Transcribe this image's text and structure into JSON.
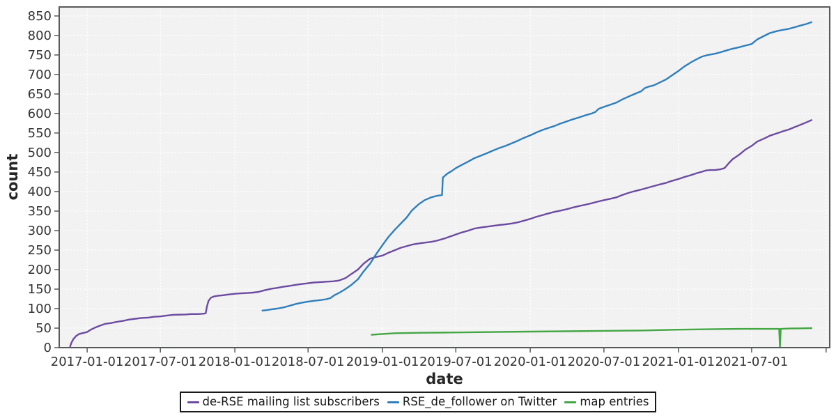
{
  "chart_data": {
    "type": "line",
    "title": "",
    "xlabel": "date",
    "ylabel": "count",
    "grid": true,
    "legend_position": "bottom",
    "x_domain": [
      "2016-10-24",
      "2022-01-10"
    ],
    "y_domain": [
      0,
      873
    ],
    "y_ticks": [
      0,
      50,
      100,
      150,
      200,
      250,
      300,
      350,
      400,
      450,
      500,
      550,
      600,
      650,
      700,
      750,
      800,
      850
    ],
    "x_ticks": [
      {
        "date": "2017-01-01",
        "label": "2017-01-01"
      },
      {
        "date": "2017-07-01",
        "label": "2017-07-01"
      },
      {
        "date": "2018-01-01",
        "label": "2018-01-01"
      },
      {
        "date": "2018-07-01",
        "label": "2018-07-01"
      },
      {
        "date": "2019-01-01",
        "label": "2019-01-01"
      },
      {
        "date": "2019-07-01",
        "label": "2019-07-01"
      },
      {
        "date": "2020-01-01",
        "label": "2020-01-01"
      },
      {
        "date": "2020-07-01",
        "label": "2020-07-01"
      },
      {
        "date": "2021-01-01",
        "label": "2021-01-01"
      },
      {
        "date": "2021-07-01",
        "label": "2021-07-01"
      },
      {
        "date": "2022-01-01",
        "label": ""
      }
    ],
    "colors": {
      "plot_background": "#f2f2f2",
      "gridline": "#ffffff",
      "axis_frame": "#58595b",
      "tick_text": "#333333",
      "axis_title_text": "#262626",
      "legend_border": "#1a1a1a",
      "legend_text": "#1a1a1a"
    },
    "series": [
      {
        "name": "de-RSE mailing list subscribers",
        "color": "#6b4ba1",
        "points": [
          [
            "2016-11-20",
            3
          ],
          [
            "2016-11-23",
            12
          ],
          [
            "2016-11-28",
            22
          ],
          [
            "2016-12-05",
            30
          ],
          [
            "2016-12-12",
            35
          ],
          [
            "2016-12-20",
            37
          ],
          [
            "2017-01-01",
            40
          ],
          [
            "2017-01-10",
            46
          ],
          [
            "2017-01-20",
            51
          ],
          [
            "2017-02-01",
            56
          ],
          [
            "2017-02-15",
            61
          ],
          [
            "2017-03-01",
            63
          ],
          [
            "2017-03-15",
            66
          ],
          [
            "2017-04-01",
            69
          ],
          [
            "2017-04-15",
            72
          ],
          [
            "2017-05-01",
            74
          ],
          [
            "2017-05-15",
            76
          ],
          [
            "2017-06-01",
            77
          ],
          [
            "2017-06-15",
            79
          ],
          [
            "2017-07-01",
            80
          ],
          [
            "2017-07-15",
            82
          ],
          [
            "2017-08-01",
            84
          ],
          [
            "2017-09-01",
            85
          ],
          [
            "2017-09-15",
            86
          ],
          [
            "2017-10-01",
            86
          ],
          [
            "2017-10-15",
            87
          ],
          [
            "2017-10-21",
            88
          ],
          [
            "2017-10-24",
            105
          ],
          [
            "2017-10-28",
            120
          ],
          [
            "2017-11-03",
            128
          ],
          [
            "2017-11-10",
            131
          ],
          [
            "2017-11-20",
            133
          ],
          [
            "2017-12-01",
            134
          ],
          [
            "2017-12-15",
            136
          ],
          [
            "2018-01-01",
            138
          ],
          [
            "2018-01-15",
            139
          ],
          [
            "2018-02-01",
            140
          ],
          [
            "2018-02-15",
            141
          ],
          [
            "2018-03-01",
            143
          ],
          [
            "2018-03-15",
            147
          ],
          [
            "2018-04-01",
            151
          ],
          [
            "2018-04-15",
            153
          ],
          [
            "2018-05-01",
            156
          ],
          [
            "2018-05-15",
            158
          ],
          [
            "2018-06-01",
            161
          ],
          [
            "2018-06-15",
            163
          ],
          [
            "2018-07-01",
            165
          ],
          [
            "2018-07-15",
            167
          ],
          [
            "2018-08-01",
            168
          ],
          [
            "2018-08-15",
            169
          ],
          [
            "2018-09-01",
            170
          ],
          [
            "2018-09-15",
            172
          ],
          [
            "2018-10-01",
            178
          ],
          [
            "2018-10-15",
            188
          ],
          [
            "2018-11-01",
            200
          ],
          [
            "2018-11-15",
            215
          ],
          [
            "2018-12-01",
            228
          ],
          [
            "2018-12-15",
            232
          ],
          [
            "2019-01-01",
            236
          ],
          [
            "2019-01-15",
            243
          ],
          [
            "2019-02-01",
            250
          ],
          [
            "2019-02-15",
            256
          ],
          [
            "2019-03-01",
            260
          ],
          [
            "2019-03-15",
            264
          ],
          [
            "2019-04-01",
            267
          ],
          [
            "2019-04-15",
            269
          ],
          [
            "2019-05-01",
            271
          ],
          [
            "2019-05-15",
            274
          ],
          [
            "2019-06-01",
            279
          ],
          [
            "2019-06-15",
            284
          ],
          [
            "2019-07-01",
            290
          ],
          [
            "2019-07-15",
            295
          ],
          [
            "2019-08-01",
            300
          ],
          [
            "2019-08-15",
            305
          ],
          [
            "2019-09-01",
            308
          ],
          [
            "2019-09-15",
            310
          ],
          [
            "2019-10-01",
            312
          ],
          [
            "2019-10-15",
            314
          ],
          [
            "2019-11-01",
            316
          ],
          [
            "2019-11-15",
            318
          ],
          [
            "2019-12-01",
            321
          ],
          [
            "2019-12-15",
            325
          ],
          [
            "2020-01-01",
            330
          ],
          [
            "2020-01-15",
            335
          ],
          [
            "2020-02-01",
            340
          ],
          [
            "2020-02-15",
            344
          ],
          [
            "2020-03-01",
            348
          ],
          [
            "2020-03-15",
            351
          ],
          [
            "2020-04-01",
            355
          ],
          [
            "2020-04-15",
            359
          ],
          [
            "2020-05-01",
            363
          ],
          [
            "2020-05-15",
            366
          ],
          [
            "2020-06-01",
            370
          ],
          [
            "2020-06-15",
            374
          ],
          [
            "2020-07-01",
            378
          ],
          [
            "2020-07-15",
            381
          ],
          [
            "2020-08-01",
            385
          ],
          [
            "2020-08-15",
            391
          ],
          [
            "2020-09-01",
            397
          ],
          [
            "2020-09-15",
            401
          ],
          [
            "2020-10-01",
            405
          ],
          [
            "2020-10-15",
            409
          ],
          [
            "2020-11-01",
            414
          ],
          [
            "2020-11-15",
            418
          ],
          [
            "2020-12-01",
            422
          ],
          [
            "2020-12-15",
            427
          ],
          [
            "2021-01-01",
            432
          ],
          [
            "2021-01-15",
            437
          ],
          [
            "2021-02-01",
            442
          ],
          [
            "2021-02-15",
            447
          ],
          [
            "2021-03-01",
            451
          ],
          [
            "2021-03-10",
            454
          ],
          [
            "2021-03-20",
            455
          ],
          [
            "2021-04-01",
            455
          ],
          [
            "2021-04-15",
            457
          ],
          [
            "2021-04-25",
            460
          ],
          [
            "2021-05-05",
            472
          ],
          [
            "2021-05-15",
            483
          ],
          [
            "2021-06-01",
            495
          ],
          [
            "2021-06-15",
            507
          ],
          [
            "2021-07-01",
            517
          ],
          [
            "2021-07-15",
            528
          ],
          [
            "2021-08-01",
            536
          ],
          [
            "2021-08-15",
            543
          ],
          [
            "2021-09-01",
            549
          ],
          [
            "2021-09-15",
            554
          ],
          [
            "2021-10-01",
            559
          ],
          [
            "2021-10-15",
            565
          ],
          [
            "2021-11-01",
            572
          ],
          [
            "2021-11-15",
            578
          ],
          [
            "2021-11-26",
            583
          ]
        ]
      },
      {
        "name": "RSE_de_follower on Twitter",
        "color": "#2e7ebc",
        "points": [
          [
            "2018-03-10",
            95
          ],
          [
            "2018-03-20",
            96
          ],
          [
            "2018-04-01",
            98
          ],
          [
            "2018-04-15",
            100
          ],
          [
            "2018-05-01",
            103
          ],
          [
            "2018-05-15",
            107
          ],
          [
            "2018-06-01",
            112
          ],
          [
            "2018-06-15",
            115
          ],
          [
            "2018-07-01",
            118
          ],
          [
            "2018-07-15",
            120
          ],
          [
            "2018-08-01",
            122
          ],
          [
            "2018-08-15",
            124
          ],
          [
            "2018-08-25",
            127
          ],
          [
            "2018-09-05",
            135
          ],
          [
            "2018-09-15",
            140
          ],
          [
            "2018-10-01",
            150
          ],
          [
            "2018-10-15",
            160
          ],
          [
            "2018-11-01",
            175
          ],
          [
            "2018-11-15",
            195
          ],
          [
            "2018-12-01",
            215
          ],
          [
            "2018-12-15",
            238
          ],
          [
            "2019-01-01",
            263
          ],
          [
            "2019-01-15",
            283
          ],
          [
            "2019-02-01",
            303
          ],
          [
            "2019-02-15",
            318
          ],
          [
            "2019-03-01",
            333
          ],
          [
            "2019-03-15",
            352
          ],
          [
            "2019-04-01",
            368
          ],
          [
            "2019-04-15",
            378
          ],
          [
            "2019-05-01",
            385
          ],
          [
            "2019-05-15",
            389
          ],
          [
            "2019-05-28",
            391
          ],
          [
            "2019-05-30",
            436
          ],
          [
            "2019-06-10",
            446
          ],
          [
            "2019-06-20",
            452
          ],
          [
            "2019-07-01",
            460
          ],
          [
            "2019-07-15",
            468
          ],
          [
            "2019-08-01",
            477
          ],
          [
            "2019-08-15",
            485
          ],
          [
            "2019-09-01",
            492
          ],
          [
            "2019-09-15",
            498
          ],
          [
            "2019-10-01",
            505
          ],
          [
            "2019-10-15",
            511
          ],
          [
            "2019-11-01",
            517
          ],
          [
            "2019-11-15",
            523
          ],
          [
            "2019-12-01",
            530
          ],
          [
            "2019-12-15",
            537
          ],
          [
            "2020-01-01",
            544
          ],
          [
            "2020-01-15",
            551
          ],
          [
            "2020-02-01",
            558
          ],
          [
            "2020-02-15",
            563
          ],
          [
            "2020-03-01",
            568
          ],
          [
            "2020-03-15",
            574
          ],
          [
            "2020-04-01",
            580
          ],
          [
            "2020-04-15",
            585
          ],
          [
            "2020-05-01",
            590
          ],
          [
            "2020-05-15",
            595
          ],
          [
            "2020-06-01",
            600
          ],
          [
            "2020-06-10",
            604
          ],
          [
            "2020-06-18",
            612
          ],
          [
            "2020-07-01",
            617
          ],
          [
            "2020-07-15",
            622
          ],
          [
            "2020-08-01",
            628
          ],
          [
            "2020-08-15",
            636
          ],
          [
            "2020-09-01",
            644
          ],
          [
            "2020-09-15",
            650
          ],
          [
            "2020-10-01",
            657
          ],
          [
            "2020-10-10",
            665
          ],
          [
            "2020-10-20",
            669
          ],
          [
            "2020-11-01",
            672
          ],
          [
            "2020-11-15",
            679
          ],
          [
            "2020-12-01",
            687
          ],
          [
            "2020-12-15",
            697
          ],
          [
            "2021-01-01",
            709
          ],
          [
            "2021-01-15",
            720
          ],
          [
            "2021-02-01",
            731
          ],
          [
            "2021-02-15",
            739
          ],
          [
            "2021-03-01",
            746
          ],
          [
            "2021-03-15",
            750
          ],
          [
            "2021-04-01",
            753
          ],
          [
            "2021-04-15",
            757
          ],
          [
            "2021-05-01",
            762
          ],
          [
            "2021-05-15",
            766
          ],
          [
            "2021-06-01",
            770
          ],
          [
            "2021-06-15",
            774
          ],
          [
            "2021-07-01",
            778
          ],
          [
            "2021-07-15",
            790
          ],
          [
            "2021-08-01",
            799
          ],
          [
            "2021-08-15",
            806
          ],
          [
            "2021-09-01",
            811
          ],
          [
            "2021-09-15",
            814
          ],
          [
            "2021-10-01",
            817
          ],
          [
            "2021-10-15",
            821
          ],
          [
            "2021-11-01",
            826
          ],
          [
            "2021-11-15",
            830
          ],
          [
            "2021-11-26",
            834
          ]
        ]
      },
      {
        "name": "map entries",
        "color": "#44a644",
        "points": [
          [
            "2018-12-05",
            33
          ],
          [
            "2019-01-01",
            35
          ],
          [
            "2019-02-01",
            37
          ],
          [
            "2019-04-01",
            38
          ],
          [
            "2019-07-01",
            39
          ],
          [
            "2019-10-01",
            40
          ],
          [
            "2020-01-01",
            41
          ],
          [
            "2020-04-01",
            42
          ],
          [
            "2020-07-01",
            43
          ],
          [
            "2020-10-01",
            44
          ],
          [
            "2021-01-01",
            46
          ],
          [
            "2021-03-01",
            47
          ],
          [
            "2021-06-01",
            48
          ],
          [
            "2021-09-07",
            48
          ],
          [
            "2021-09-09",
            0
          ],
          [
            "2021-09-11",
            48
          ],
          [
            "2021-10-01",
            49
          ],
          [
            "2021-11-26",
            50
          ]
        ]
      }
    ]
  }
}
